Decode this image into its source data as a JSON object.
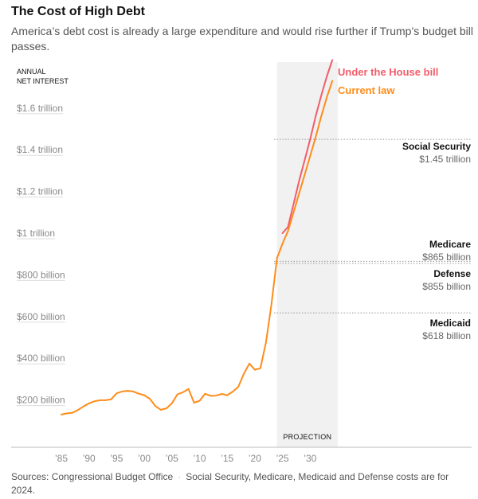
{
  "header": {
    "title": "The Cost of High Debt",
    "subtitle": "America’s debt cost is already a large expenditure and would rise further if Trump’s budget bill passes."
  },
  "footer": {
    "sources": "Sources: Congressional Budget Office",
    "note": "Social Security, Medicare, Medicaid and Defense costs are for 2024."
  },
  "colors": {
    "current_law": "#ff8c1a",
    "house_bill": "#f25c6a",
    "projection_band": "#f1f1f1",
    "reference_line": "#999999"
  },
  "chart_data": {
    "type": "line",
    "ylabel": "ANNUAL\nNET INTEREST",
    "ylim": [
      0,
      1.85
    ],
    "xlim": [
      1984,
      2035
    ],
    "y_ticks": [
      {
        "value": 0.2,
        "label": "$200 billion"
      },
      {
        "value": 0.4,
        "label": "$400 billion"
      },
      {
        "value": 0.6,
        "label": "$600 billion"
      },
      {
        "value": 0.8,
        "label": "$800 billion"
      },
      {
        "value": 1.0,
        "label": "$1 trillion"
      },
      {
        "value": 1.2,
        "label": "$1.2 trillion"
      },
      {
        "value": 1.4,
        "label": "$1.4 trillion"
      },
      {
        "value": 1.6,
        "label": "$1.6 trillion"
      }
    ],
    "x_ticks": [
      {
        "value": 1985,
        "label": "’85"
      },
      {
        "value": 1990,
        "label": "’90"
      },
      {
        "value": 1995,
        "label": "’95"
      },
      {
        "value": 2000,
        "label": "’00"
      },
      {
        "value": 2005,
        "label": "’05"
      },
      {
        "value": 2010,
        "label": "’10"
      },
      {
        "value": 2015,
        "label": "’15"
      },
      {
        "value": 2020,
        "label": "’20"
      },
      {
        "value": 2025,
        "label": "’25"
      },
      {
        "value": 2030,
        "label": "’30"
      }
    ],
    "projection": {
      "start": 2024,
      "end": 2035,
      "label": "PROJECTION"
    },
    "series": [
      {
        "name": "Current law",
        "x": [
          1985,
          1986,
          1987,
          1988,
          1989,
          1990,
          1991,
          1992,
          1993,
          1994,
          1995,
          1996,
          1997,
          1998,
          1999,
          2000,
          2001,
          2002,
          2003,
          2004,
          2005,
          2006,
          2007,
          2008,
          2009,
          2010,
          2011,
          2012,
          2013,
          2014,
          2015,
          2016,
          2017,
          2018,
          2019,
          2020,
          2021,
          2022,
          2023,
          2024,
          2025,
          2026,
          2027,
          2028,
          2029,
          2030,
          2031,
          2032,
          2033,
          2034
        ],
        "y": [
          0.13,
          0.136,
          0.139,
          0.152,
          0.169,
          0.184,
          0.194,
          0.199,
          0.199,
          0.203,
          0.232,
          0.241,
          0.244,
          0.241,
          0.23,
          0.223,
          0.206,
          0.171,
          0.153,
          0.16,
          0.184,
          0.227,
          0.237,
          0.253,
          0.187,
          0.196,
          0.23,
          0.22,
          0.221,
          0.229,
          0.223,
          0.24,
          0.263,
          0.325,
          0.375,
          0.345,
          0.352,
          0.475,
          0.658,
          0.88,
          0.95,
          1.01,
          1.1,
          1.19,
          1.28,
          1.37,
          1.46,
          1.56,
          1.65,
          1.73
        ]
      },
      {
        "name": "Under the House bill",
        "x": [
          2025,
          2026,
          2027,
          2028,
          2029,
          2030,
          2031,
          2032,
          2033,
          2034
        ],
        "y": [
          1.0,
          1.03,
          1.14,
          1.25,
          1.35,
          1.45,
          1.56,
          1.66,
          1.75,
          1.83
        ]
      }
    ],
    "references": [
      {
        "name": "Social Security",
        "value_label": "$1.45 trillion",
        "value": 1.45
      },
      {
        "name": "Medicare",
        "value_label": "$865 billion",
        "value": 0.865
      },
      {
        "name": "Defense",
        "value_label": "$855 billion",
        "value": 0.855
      },
      {
        "name": "Medicaid",
        "value_label": "$618 billion",
        "value": 0.618
      }
    ]
  }
}
